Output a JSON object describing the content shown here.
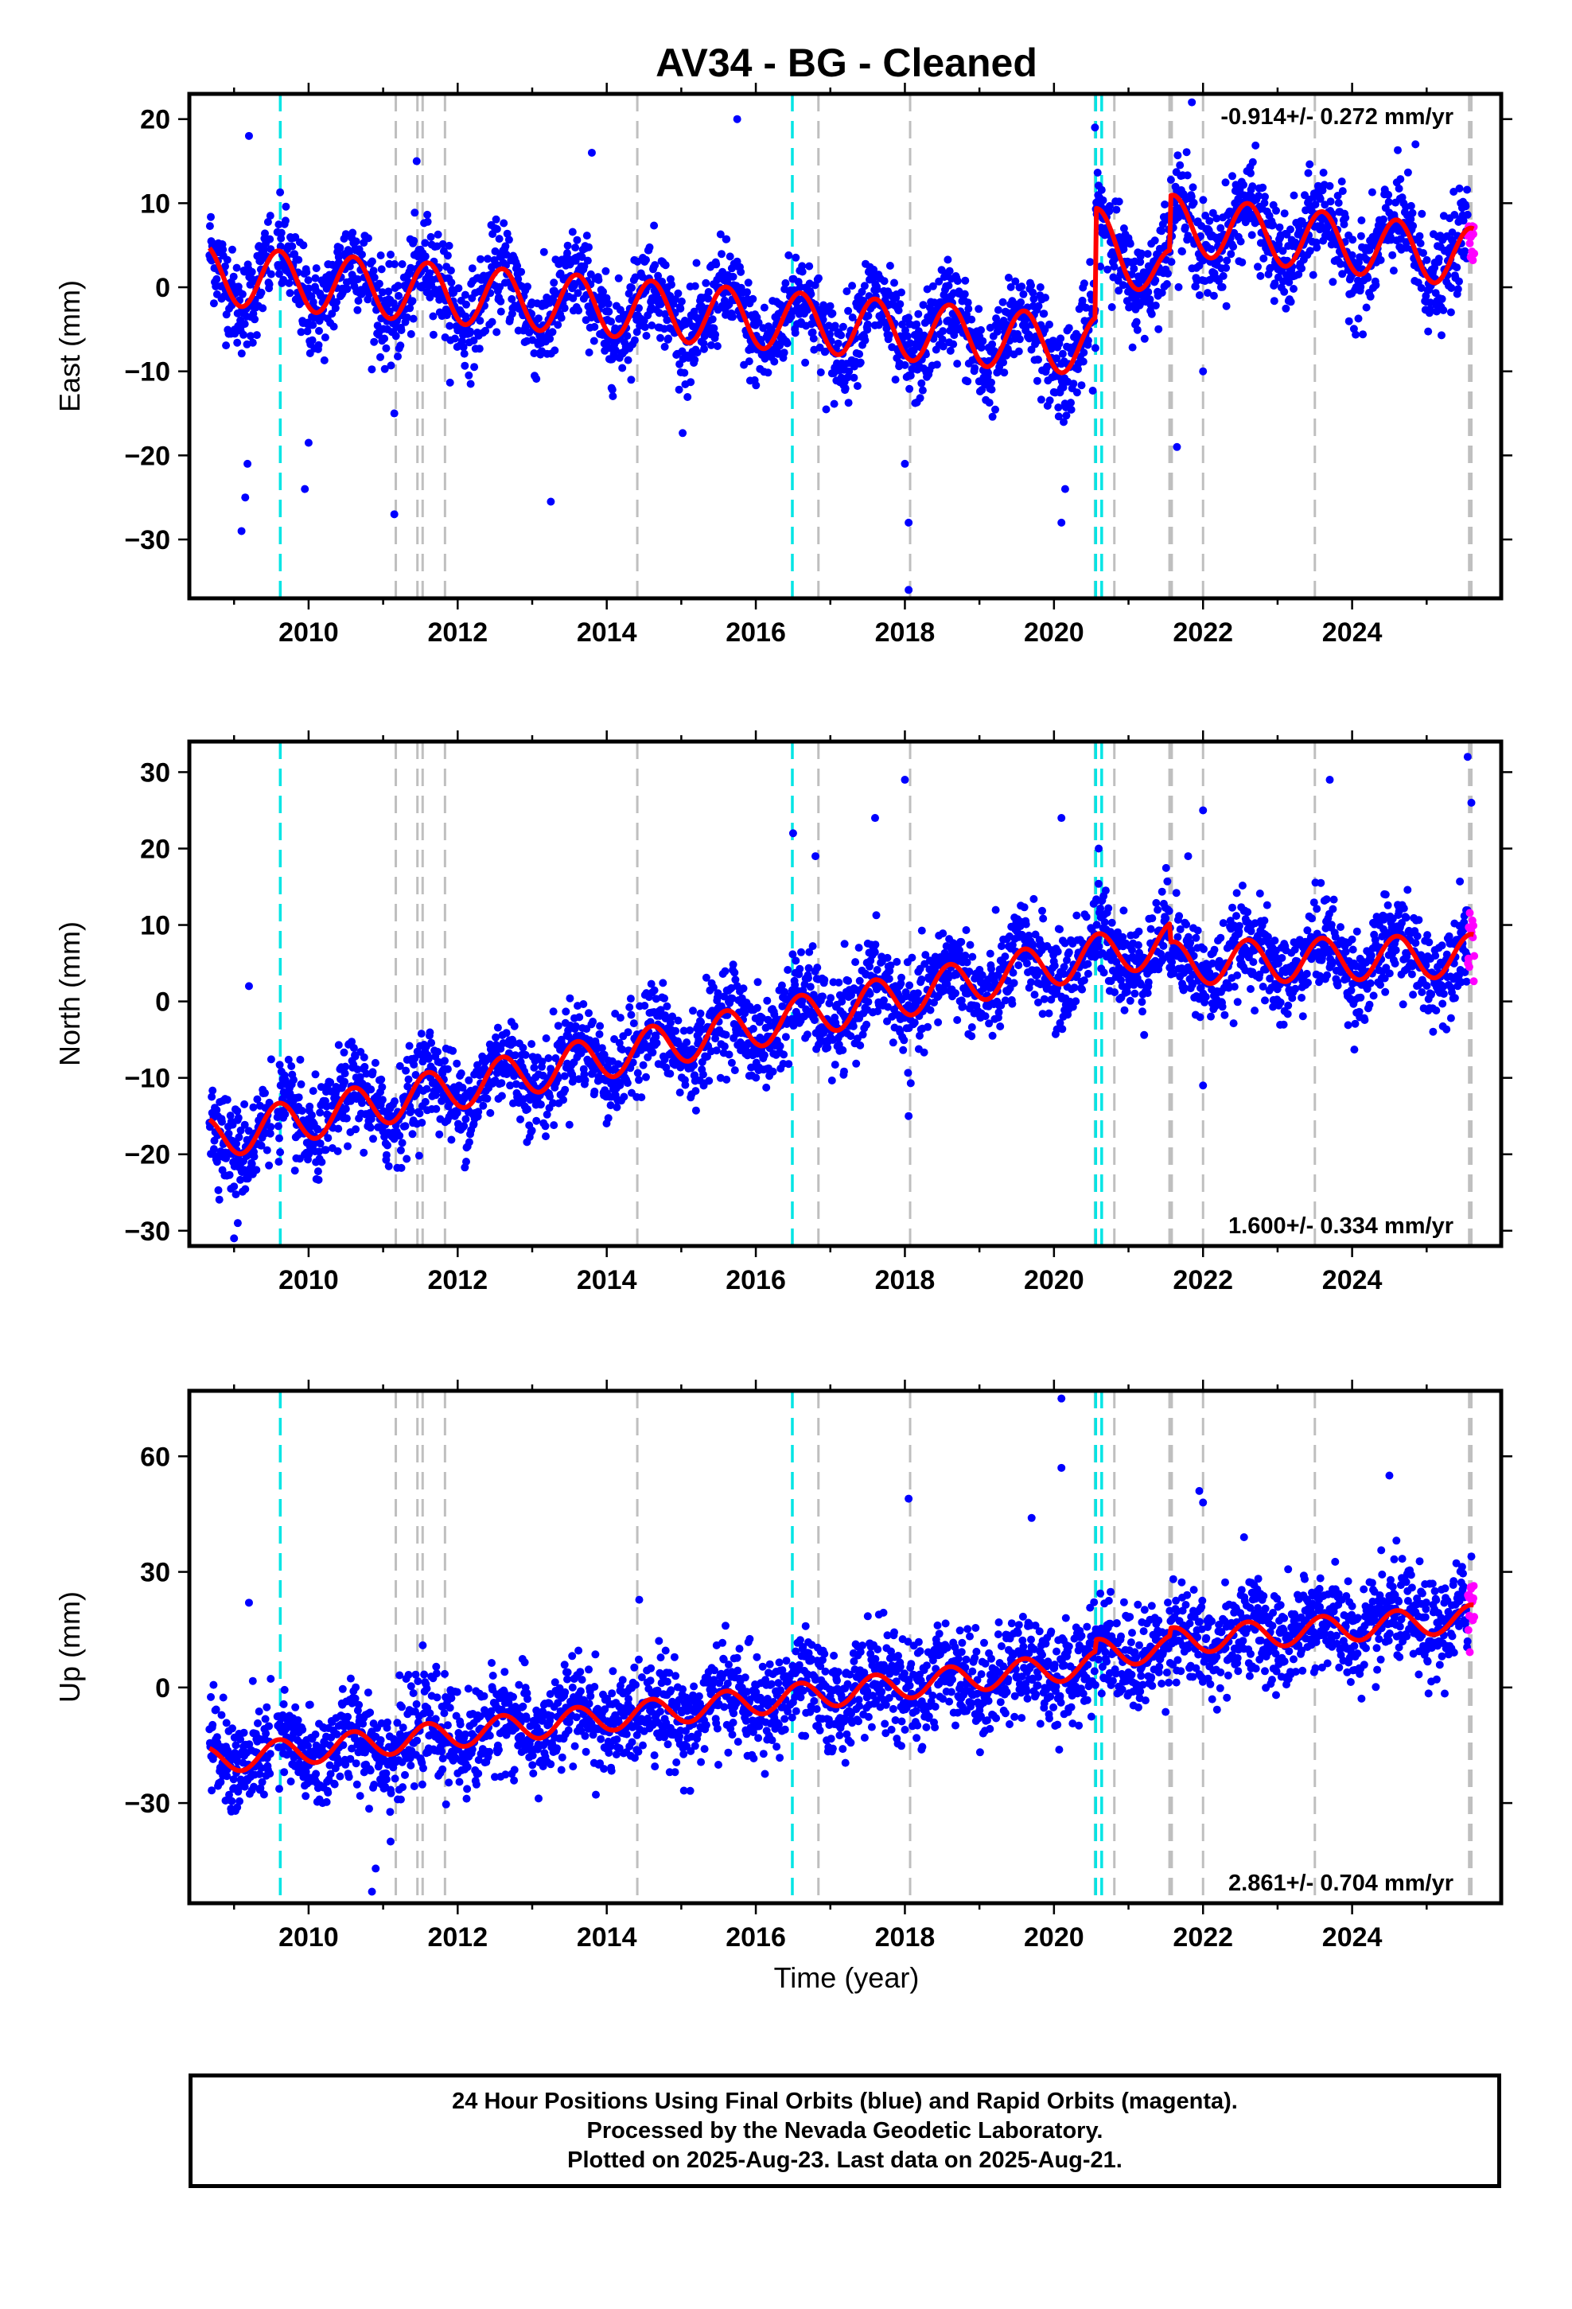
{
  "chart_data": {
    "type": "scatter",
    "title": "AV34  - BG - Cleaned",
    "xlabel": "Time (year)",
    "xlim": [
      2008.4,
      2026.0
    ],
    "x_ticks": [
      "2010",
      "2012",
      "2014",
      "2016",
      "2018",
      "2020",
      "2022",
      "2024"
    ],
    "grid": false,
    "series_legend": [
      "Final Orbits (blue)",
      "Rapid Orbits (magenta)",
      "model fit (red)"
    ],
    "colors": {
      "final": "#0000ff",
      "rapid": "#ff00ff",
      "fit": "#ff0000",
      "cyan_line": "#00e5e5",
      "gray_line": "#bfbfbf"
    },
    "time_range": {
      "start": 2008.67,
      "end": 2025.64,
      "rapid_start": 2025.55
    },
    "event_lines": {
      "cyan": [
        2009.62,
        2016.49,
        2020.56,
        2020.64
      ],
      "gray": [
        2011.17,
        2011.46,
        2011.53,
        2011.83,
        2014.41,
        2016.84,
        2018.07,
        2020.55,
        2020.81,
        2021.55,
        2021.58,
        2022.0,
        2023.5,
        2025.57,
        2025.6
      ]
    },
    "panels": [
      {
        "id": "east",
        "ylabel": "East (mm)",
        "ylim": [
          -37,
          23
        ],
        "y_ticks": [
          "20",
          "10",
          "0",
          "−10",
          "−20",
          "−30"
        ],
        "rate": "-0.914+/- 0.272 mm/yr",
        "rate_position": "top-right",
        "fit": {
          "annual_amplitude_mm": 3.5,
          "segments": [
            {
              "from": 2008.67,
              "to": 2020.56,
              "start_mm": 1.5,
              "end_mm": -7.0
            },
            {
              "from": 2020.56,
              "to": 2021.56,
              "start_mm": 6.0,
              "end_mm": 1.0
            },
            {
              "from": 2021.56,
              "to": 2025.64,
              "start_mm": 7.5,
              "end_mm": 3.5
            }
          ]
        },
        "scatter_sd_mm": 2.8,
        "outliers": [
          [
            2009.1,
            -29
          ],
          [
            2009.15,
            -25
          ],
          [
            2009.18,
            -21
          ],
          [
            2009.2,
            18
          ],
          [
            2009.95,
            -24
          ],
          [
            2010.0,
            -18.5
          ],
          [
            2011.15,
            -27
          ],
          [
            2011.15,
            -15
          ],
          [
            2011.45,
            15
          ],
          [
            2013.25,
            -25.5
          ],
          [
            2013.8,
            16
          ],
          [
            2015.75,
            20
          ],
          [
            2018.05,
            -36
          ],
          [
            2018.05,
            -28
          ],
          [
            2018.0,
            -21
          ],
          [
            2020.1,
            -28
          ],
          [
            2020.15,
            -24
          ],
          [
            2020.55,
            19
          ],
          [
            2021.65,
            -19
          ],
          [
            2021.85,
            22
          ],
          [
            2022.0,
            -10
          ],
          [
            2024.85,
            17
          ]
        ]
      },
      {
        "id": "north",
        "ylabel": "North (mm)",
        "ylim": [
          -32,
          34
        ],
        "y_ticks": [
          "30",
          "20",
          "10",
          "0",
          "−10",
          "−20",
          "−30"
        ],
        "rate": "1.600+/- 0.334 mm/yr",
        "rate_position": "bottom-right",
        "fit": {
          "annual_amplitude_mm": 2.8,
          "segments": [
            {
              "from": 2008.67,
              "to": 2020.56,
              "start_mm": -18.0,
              "end_mm": 6.0
            },
            {
              "from": 2020.56,
              "to": 2021.56,
              "start_mm": 6.0,
              "end_mm": 7.5
            },
            {
              "from": 2021.56,
              "to": 2025.64,
              "start_mm": 5.0,
              "end_mm": 6.0
            }
          ]
        },
        "scatter_sd_mm": 3.0,
        "outliers": [
          [
            2009.0,
            -31
          ],
          [
            2009.05,
            -29
          ],
          [
            2009.2,
            2
          ],
          [
            2016.5,
            22
          ],
          [
            2016.8,
            19
          ],
          [
            2017.6,
            24
          ],
          [
            2018.0,
            29
          ],
          [
            2018.05,
            -15
          ],
          [
            2020.1,
            24
          ],
          [
            2020.6,
            20
          ],
          [
            2021.8,
            19
          ],
          [
            2022.0,
            25
          ],
          [
            2022.0,
            -11
          ],
          [
            2023.7,
            29
          ],
          [
            2025.55,
            32
          ],
          [
            2025.6,
            26
          ]
        ]
      },
      {
        "id": "up",
        "ylabel": "Up (mm)",
        "ylim": [
          -56,
          77
        ],
        "y_ticks": [
          "60",
          "30",
          "0",
          "−30"
        ],
        "rate": "2.861+/- 0.704 mm/yr",
        "rate_position": "bottom-right",
        "fit": {
          "annual_amplitude_mm": 3.5,
          "segments": [
            {
              "from": 2008.67,
              "to": 2020.56,
              "start_mm": -19.0,
              "end_mm": 6.0
            },
            {
              "from": 2020.56,
              "to": 2021.56,
              "start_mm": 9.0,
              "end_mm": 10.0
            },
            {
              "from": 2021.56,
              "to": 2025.64,
              "start_mm": 12.0,
              "end_mm": 18.0
            }
          ]
        },
        "scatter_sd_mm": 6.5,
        "outliers": [
          [
            2009.2,
            22
          ],
          [
            2010.85,
            -53
          ],
          [
            2010.9,
            -47
          ],
          [
            2011.1,
            -40
          ],
          [
            2018.05,
            49
          ],
          [
            2019.7,
            44
          ],
          [
            2020.1,
            75
          ],
          [
            2020.1,
            57
          ],
          [
            2021.95,
            51
          ],
          [
            2022.0,
            48
          ],
          [
            2022.55,
            39
          ],
          [
            2024.5,
            55
          ],
          [
            2025.6,
            34
          ]
        ]
      }
    ]
  },
  "footer": {
    "line1": "24 Hour Positions Using Final Orbits (blue) and Rapid Orbits (magenta).",
    "line2": "Processed by the Nevada Geodetic Laboratory.",
    "line3": "Plotted on 2025-Aug-23. Last data on 2025-Aug-21."
  }
}
